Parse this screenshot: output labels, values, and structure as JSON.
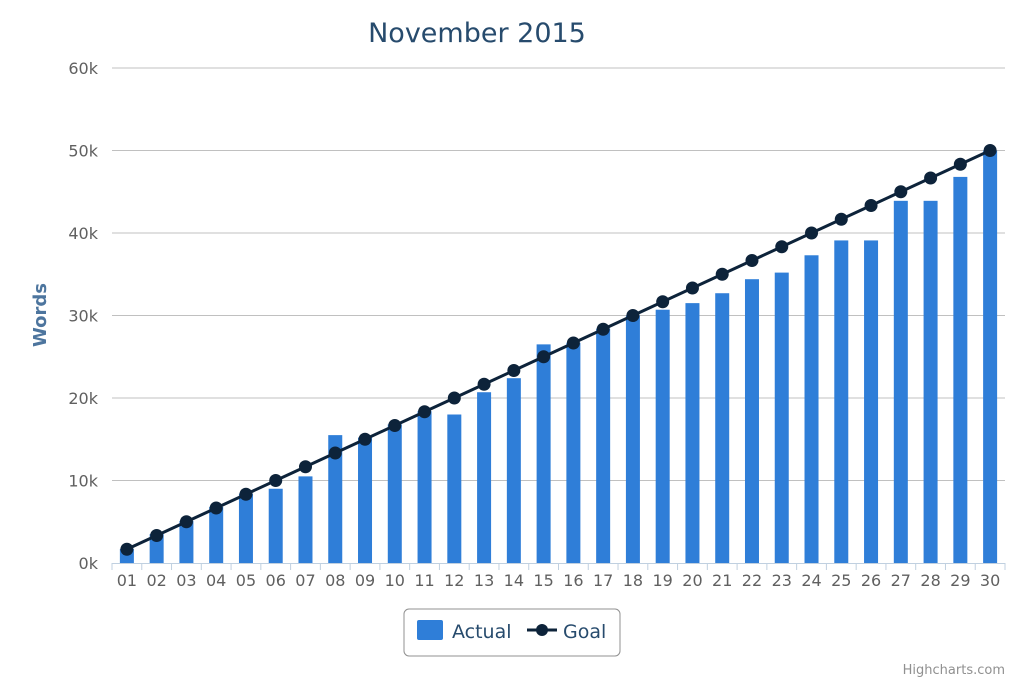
{
  "chart_data": {
    "type": "bar",
    "title": "November 2015",
    "ylabel": "Words",
    "xlabel": "",
    "ylim": [
      0,
      60000
    ],
    "yticks": [
      "0k",
      "10k",
      "20k",
      "30k",
      "40k",
      "50k",
      "60k"
    ],
    "grid": true,
    "legend_position": "bottom-center",
    "categories": [
      "01",
      "02",
      "03",
      "04",
      "05",
      "06",
      "07",
      "08",
      "09",
      "10",
      "11",
      "12",
      "13",
      "14",
      "15",
      "16",
      "17",
      "18",
      "19",
      "20",
      "21",
      "22",
      "23",
      "24",
      "25",
      "26",
      "27",
      "28",
      "29",
      "30"
    ],
    "series": [
      {
        "name": "Actual",
        "type": "bar",
        "color": "#2f7ed8",
        "values": [
          1700,
          3500,
          5100,
          6800,
          8400,
          9000,
          10500,
          15500,
          15200,
          16800,
          18400,
          18000,
          20700,
          22400,
          26500,
          26700,
          28400,
          30000,
          30700,
          31500,
          32700,
          34400,
          35200,
          37300,
          39100,
          39100,
          43900,
          43900,
          46800,
          50000
        ]
      },
      {
        "name": "Goal",
        "type": "line",
        "color": "#0d233a",
        "values": [
          1667,
          3333,
          5000,
          6667,
          8333,
          10000,
          11667,
          13333,
          15000,
          16667,
          18333,
          20000,
          21667,
          23333,
          25000,
          26667,
          28333,
          30000,
          31667,
          33333,
          35000,
          36667,
          38333,
          40000,
          41667,
          43333,
          45000,
          46667,
          48333,
          50000
        ]
      }
    ]
  },
  "legend": {
    "actual_label": "Actual",
    "goal_label": "Goal"
  },
  "credit": "Highcharts.com"
}
